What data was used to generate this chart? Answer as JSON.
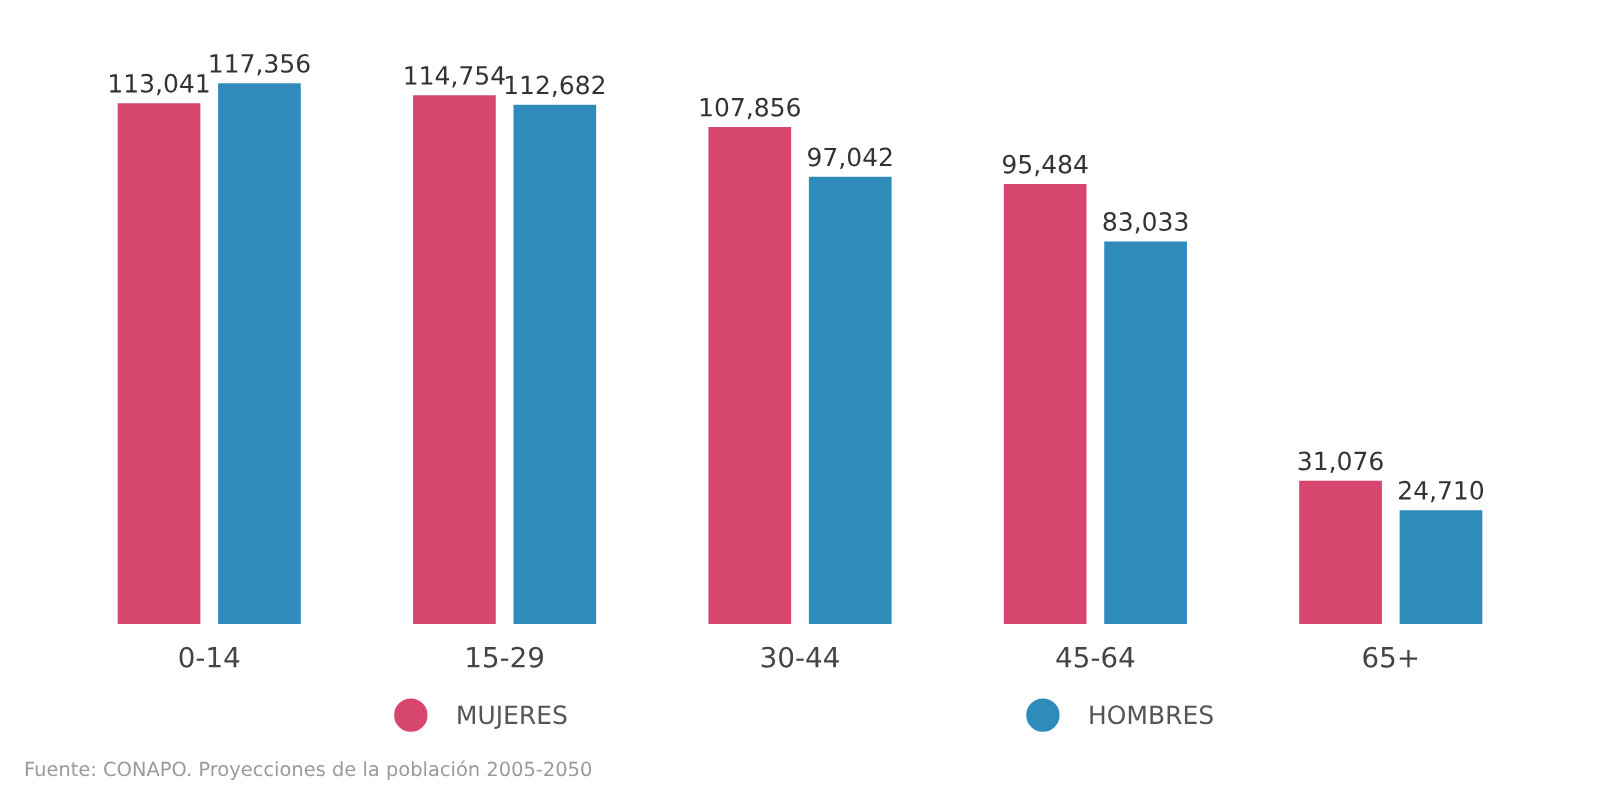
{
  "chart_data": {
    "type": "bar",
    "categories": [
      "0-14",
      "15-29",
      "30-44",
      "45-64",
      "65+"
    ],
    "series": [
      {
        "name": "MUJERES",
        "color": "#d6466f",
        "values": [
          113041,
          114754,
          107856,
          95484,
          31076
        ],
        "value_labels": [
          "113,041",
          "114,754",
          "107,856",
          "95,484",
          "31,076"
        ]
      },
      {
        "name": "HOMBRES",
        "color": "#2f8bba",
        "values": [
          117356,
          112682,
          97042,
          83033,
          24710
        ],
        "value_labels": [
          "117,356",
          "112,682",
          "97,042",
          "83,033",
          "24,710"
        ]
      }
    ],
    "legend": "bottom",
    "grid": false,
    "annotations": [
      "Fuente: CONAPO. Proyecciones de la población 2005-2050"
    ]
  }
}
